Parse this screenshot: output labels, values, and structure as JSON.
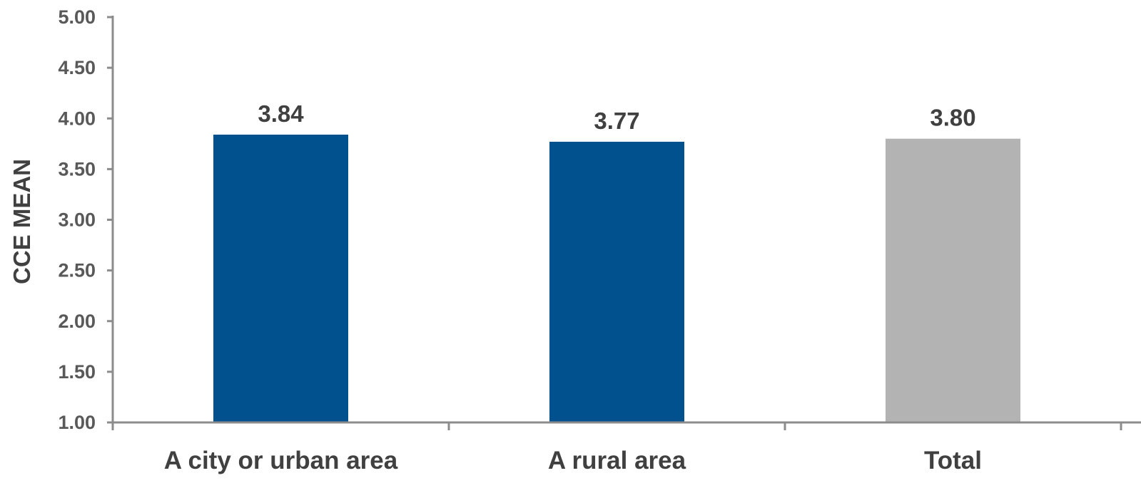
{
  "chart_data": {
    "type": "bar",
    "categories": [
      "A city or urban area",
      "A rural area",
      "Total"
    ],
    "values": [
      3.84,
      3.77,
      3.8
    ],
    "data_labels": [
      "3.84",
      "3.77",
      "3.80"
    ],
    "colors": [
      "#02518F",
      "#02518F",
      "#B3B3B3"
    ],
    "title": "",
    "xlabel": "",
    "ylabel": "CCE MEAN",
    "ylim": [
      1.0,
      5.0
    ],
    "yticks": [
      1.0,
      1.5,
      2.0,
      2.5,
      3.0,
      3.5,
      4.0,
      4.5,
      5.0
    ],
    "ytick_labels": [
      "1.00",
      "1.50",
      "2.00",
      "2.50",
      "3.00",
      "3.50",
      "4.00",
      "4.50",
      "5.00"
    ],
    "grid": false,
    "legend": "none"
  }
}
